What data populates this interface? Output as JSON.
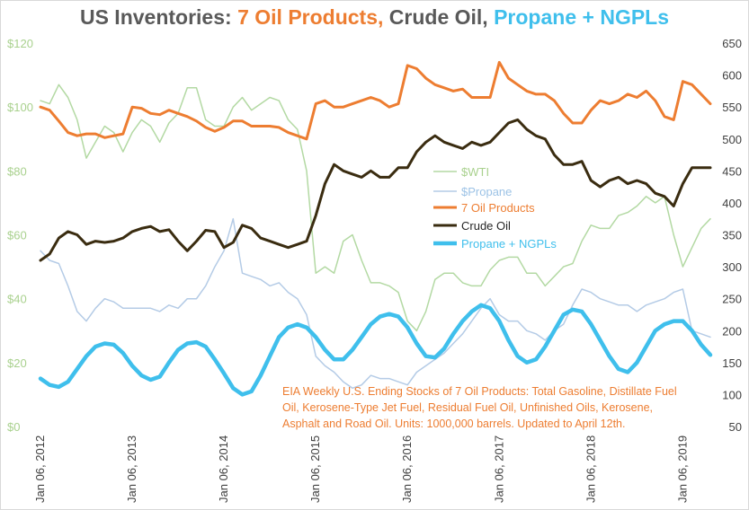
{
  "title": {
    "part1": "US Inventories: ",
    "part2": "7 Oil Products,",
    "part3": " Crude Oil, ",
    "part4": "Propane + NGPLs",
    "color_main": "#595959",
    "color_oil": "#ed7d31",
    "color_crude": "#3a2c10",
    "color_propane": "#3fbfec"
  },
  "chart_data": {
    "type": "line",
    "title": "US Inventories: 7 Oil Products, Crude Oil, Propane + NGPLs",
    "x_range": [
      2012.0,
      2019.3
    ],
    "x_tick_labels": [
      "Jan 06, 2012",
      "Jan 06, 2013",
      "Jan 06, 2014",
      "Jan 06, 2015",
      "Jan 06, 2016",
      "Jan 06, 2017",
      "Jan 06, 2018",
      "Jan 06, 2019"
    ],
    "x_tick_values": [
      2012.0,
      2013.0,
      2014.0,
      2015.0,
      2016.0,
      2017.0,
      2018.0,
      2019.0
    ],
    "y_left": {
      "range": [
        0,
        120
      ],
      "ticks": [
        0,
        20,
        40,
        60,
        80,
        100,
        120
      ],
      "labels": [
        "$0",
        "$20",
        "$40",
        "$60",
        "$80",
        "$100",
        "$120"
      ],
      "color": "#a9d18e"
    },
    "y_right": {
      "range": [
        50,
        650
      ],
      "ticks": [
        50,
        100,
        150,
        200,
        250,
        300,
        350,
        400,
        450,
        500,
        550,
        600,
        650
      ],
      "labels": [
        "50",
        "100",
        "150",
        "200",
        "250",
        "300",
        "350",
        "400",
        "450",
        "500",
        "550",
        "600",
        "650"
      ],
      "color": "#404040"
    },
    "series": [
      {
        "name": "$WTI",
        "axis": "left",
        "color": "#b3d9a3",
        "width": 1.5,
        "x": [
          2012.0,
          2012.1,
          2012.2,
          2012.3,
          2012.4,
          2012.5,
          2012.6,
          2012.7,
          2012.8,
          2012.9,
          2013.0,
          2013.1,
          2013.2,
          2013.3,
          2013.4,
          2013.5,
          2013.6,
          2013.7,
          2013.8,
          2013.9,
          2014.0,
          2014.1,
          2014.2,
          2014.3,
          2014.4,
          2014.5,
          2014.6,
          2014.7,
          2014.8,
          2014.9,
          2015.0,
          2015.1,
          2015.2,
          2015.3,
          2015.4,
          2015.5,
          2015.6,
          2015.7,
          2015.8,
          2015.9,
          2016.0,
          2016.1,
          2016.2,
          2016.3,
          2016.4,
          2016.5,
          2016.6,
          2016.7,
          2016.8,
          2016.9,
          2017.0,
          2017.1,
          2017.2,
          2017.3,
          2017.4,
          2017.5,
          2017.6,
          2017.7,
          2017.8,
          2017.9,
          2018.0,
          2018.1,
          2018.2,
          2018.3,
          2018.4,
          2018.5,
          2018.6,
          2018.7,
          2018.8,
          2018.9,
          2019.0,
          2019.1,
          2019.2,
          2019.3
        ],
        "values": [
          102,
          101,
          107,
          103,
          96,
          84,
          89,
          94,
          92,
          86,
          92,
          96,
          94,
          89,
          95,
          98,
          106,
          106,
          96,
          94,
          94,
          100,
          103,
          99,
          101,
          103,
          102,
          96,
          93,
          80,
          48,
          50,
          48,
          58,
          60,
          52,
          45,
          45,
          44,
          42,
          33,
          30,
          36,
          46,
          48,
          48,
          45,
          44,
          44,
          49,
          52,
          53,
          53,
          48,
          48,
          44,
          47,
          50,
          51,
          58,
          63,
          62,
          62,
          66,
          67,
          69,
          72,
          70,
          72,
          60,
          50,
          56,
          62,
          65
        ]
      },
      {
        "name": "$Propane",
        "axis": "left",
        "color": "#b4cbe6",
        "width": 1.5,
        "x": [
          2012.0,
          2012.1,
          2012.2,
          2012.3,
          2012.4,
          2012.5,
          2012.6,
          2012.7,
          2012.8,
          2012.9,
          2013.0,
          2013.1,
          2013.2,
          2013.3,
          2013.4,
          2013.5,
          2013.6,
          2013.7,
          2013.8,
          2013.9,
          2014.0,
          2014.1,
          2014.2,
          2014.3,
          2014.4,
          2014.5,
          2014.6,
          2014.7,
          2014.8,
          2014.9,
          2015.0,
          2015.1,
          2015.2,
          2015.3,
          2015.4,
          2015.5,
          2015.6,
          2015.7,
          2015.8,
          2015.9,
          2016.0,
          2016.1,
          2016.2,
          2016.3,
          2016.4,
          2016.5,
          2016.6,
          2016.7,
          2016.8,
          2016.9,
          2017.0,
          2017.1,
          2017.2,
          2017.3,
          2017.4,
          2017.5,
          2017.6,
          2017.7,
          2017.8,
          2017.9,
          2018.0,
          2018.1,
          2018.2,
          2018.3,
          2018.4,
          2018.5,
          2018.6,
          2018.7,
          2018.8,
          2018.9,
          2019.0,
          2019.1,
          2019.2,
          2019.3
        ],
        "values": [
          55,
          52,
          51,
          44,
          36,
          33,
          37,
          40,
          39,
          37,
          37,
          37,
          37,
          36,
          38,
          37,
          40,
          40,
          44,
          50,
          55,
          65,
          48,
          47,
          46,
          44,
          45,
          42,
          40,
          35,
          22,
          19,
          17,
          14,
          12,
          13,
          16,
          15,
          15,
          14,
          13,
          17,
          19,
          21,
          23,
          26,
          29,
          33,
          37,
          40,
          35,
          33,
          33,
          30,
          29,
          27,
          30,
          32,
          38,
          43,
          42,
          40,
          39,
          38,
          38,
          36,
          38,
          39,
          40,
          42,
          43,
          30,
          29,
          28
        ]
      },
      {
        "name": "7 Oil Products",
        "axis": "right",
        "color": "#ed7d31",
        "width": 3,
        "x": [
          2012.0,
          2012.1,
          2012.2,
          2012.3,
          2012.4,
          2012.5,
          2012.6,
          2012.7,
          2012.8,
          2012.9,
          2013.0,
          2013.1,
          2013.2,
          2013.3,
          2013.4,
          2013.5,
          2013.6,
          2013.7,
          2013.8,
          2013.9,
          2014.0,
          2014.1,
          2014.2,
          2014.3,
          2014.4,
          2014.5,
          2014.6,
          2014.7,
          2014.8,
          2014.9,
          2015.0,
          2015.1,
          2015.2,
          2015.3,
          2015.4,
          2015.5,
          2015.6,
          2015.7,
          2015.8,
          2015.9,
          2016.0,
          2016.1,
          2016.2,
          2016.3,
          2016.4,
          2016.5,
          2016.6,
          2016.7,
          2016.8,
          2016.9,
          2017.0,
          2017.1,
          2017.2,
          2017.3,
          2017.4,
          2017.5,
          2017.6,
          2017.7,
          2017.8,
          2017.9,
          2018.0,
          2018.1,
          2018.2,
          2018.3,
          2018.4,
          2018.5,
          2018.6,
          2018.7,
          2018.8,
          2018.9,
          2019.0,
          2019.1,
          2019.2,
          2019.3
        ],
        "values": [
          550,
          545,
          528,
          510,
          505,
          508,
          508,
          502,
          505,
          508,
          550,
          548,
          540,
          538,
          545,
          540,
          535,
          528,
          518,
          512,
          518,
          528,
          528,
          520,
          520,
          520,
          518,
          510,
          505,
          500,
          555,
          560,
          550,
          550,
          555,
          560,
          565,
          560,
          550,
          555,
          615,
          610,
          595,
          585,
          580,
          575,
          578,
          565,
          565,
          565,
          620,
          595,
          585,
          575,
          570,
          570,
          560,
          540,
          525,
          525,
          545,
          560,
          555,
          560,
          570,
          565,
          575,
          560,
          535,
          530,
          590,
          585,
          570,
          555
        ]
      },
      {
        "name": "Crude Oil",
        "axis": "right",
        "color": "#3a2c10",
        "width": 3,
        "x": [
          2012.0,
          2012.1,
          2012.2,
          2012.3,
          2012.4,
          2012.5,
          2012.6,
          2012.7,
          2012.8,
          2012.9,
          2013.0,
          2013.1,
          2013.2,
          2013.3,
          2013.4,
          2013.5,
          2013.6,
          2013.7,
          2013.8,
          2013.9,
          2014.0,
          2014.1,
          2014.2,
          2014.3,
          2014.4,
          2014.5,
          2014.6,
          2014.7,
          2014.8,
          2014.9,
          2015.0,
          2015.1,
          2015.2,
          2015.3,
          2015.4,
          2015.5,
          2015.6,
          2015.7,
          2015.8,
          2015.9,
          2016.0,
          2016.1,
          2016.2,
          2016.3,
          2016.4,
          2016.5,
          2016.6,
          2016.7,
          2016.8,
          2016.9,
          2017.0,
          2017.1,
          2017.2,
          2017.3,
          2017.4,
          2017.5,
          2017.6,
          2017.7,
          2017.8,
          2017.9,
          2018.0,
          2018.1,
          2018.2,
          2018.3,
          2018.4,
          2018.5,
          2018.6,
          2018.7,
          2018.8,
          2018.9,
          2019.0,
          2019.1,
          2019.2,
          2019.3
        ],
        "values": [
          310,
          320,
          345,
          355,
          350,
          335,
          340,
          338,
          340,
          345,
          355,
          360,
          363,
          355,
          358,
          340,
          325,
          340,
          357,
          355,
          330,
          338,
          365,
          360,
          345,
          340,
          335,
          330,
          335,
          340,
          380,
          430,
          460,
          450,
          445,
          440,
          450,
          440,
          440,
          455,
          455,
          480,
          495,
          505,
          495,
          490,
          485,
          495,
          490,
          495,
          510,
          525,
          530,
          515,
          505,
          500,
          475,
          460,
          460,
          465,
          435,
          425,
          435,
          440,
          430,
          435,
          430,
          415,
          410,
          395,
          430,
          455,
          455,
          455
        ]
      },
      {
        "name": "Propane + NGPLs",
        "axis": "right",
        "color": "#3fbfec",
        "width": 4.5,
        "x": [
          2012.0,
          2012.1,
          2012.2,
          2012.3,
          2012.4,
          2012.5,
          2012.6,
          2012.7,
          2012.8,
          2012.9,
          2013.0,
          2013.1,
          2013.2,
          2013.3,
          2013.4,
          2013.5,
          2013.6,
          2013.7,
          2013.8,
          2013.9,
          2014.0,
          2014.1,
          2014.2,
          2014.3,
          2014.4,
          2014.5,
          2014.6,
          2014.7,
          2014.8,
          2014.9,
          2015.0,
          2015.1,
          2015.2,
          2015.3,
          2015.4,
          2015.5,
          2015.6,
          2015.7,
          2015.8,
          2015.9,
          2016.0,
          2016.1,
          2016.2,
          2016.3,
          2016.4,
          2016.5,
          2016.6,
          2016.7,
          2016.8,
          2016.9,
          2017.0,
          2017.1,
          2017.2,
          2017.3,
          2017.4,
          2017.5,
          2017.6,
          2017.7,
          2017.8,
          2017.9,
          2018.0,
          2018.1,
          2018.2,
          2018.3,
          2018.4,
          2018.5,
          2018.6,
          2018.7,
          2018.8,
          2018.9,
          2019.0,
          2019.1,
          2019.2,
          2019.3
        ],
        "values": [
          125,
          115,
          112,
          120,
          140,
          160,
          175,
          180,
          178,
          165,
          145,
          130,
          123,
          128,
          150,
          170,
          180,
          182,
          175,
          155,
          133,
          110,
          100,
          105,
          130,
          160,
          190,
          205,
          210,
          205,
          190,
          170,
          155,
          155,
          170,
          190,
          210,
          222,
          226,
          222,
          205,
          180,
          160,
          158,
          172,
          195,
          215,
          230,
          240,
          235,
          215,
          185,
          160,
          150,
          155,
          175,
          200,
          225,
          233,
          230,
          210,
          185,
          160,
          140,
          135,
          150,
          175,
          200,
          210,
          215,
          215,
          200,
          178,
          162
        ]
      }
    ],
    "legend": {
      "placement": "center-right",
      "entries": [
        "$WTI",
        "$Propane",
        "7 Oil Products",
        "Crude Oil",
        "Propane + NGPLs"
      ]
    },
    "annotation": {
      "line1": "EIA Weekly U.S. Ending Stocks of 7 Oil Products: Total Gasoline, Distillate Fuel",
      "line2": "Oil, Kerosene-Type Jet Fuel, Residual Fuel Oil, Unfinished Oils, Kerosene,",
      "line3": "Asphalt and Road Oil. Units: 1000,000 barrels. Updated to April 12th."
    }
  }
}
